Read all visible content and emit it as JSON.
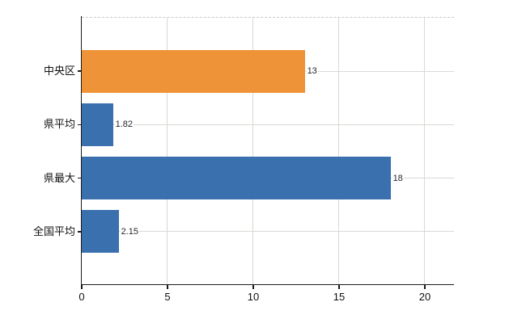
{
  "chart_data": {
    "type": "bar",
    "orientation": "horizontal",
    "title": "",
    "xlabel": "",
    "ylabel": "",
    "categories": [
      "中央区",
      "県平均",
      "県最大",
      "全国平均"
    ],
    "values": [
      13,
      1.82,
      18,
      2.15
    ],
    "value_labels": [
      "13",
      "1.82",
      "18",
      "2.15"
    ],
    "bar_colors": [
      "#ef9338",
      "#3b70af",
      "#3b70af",
      "#3b70af"
    ],
    "xlim": [
      0,
      21.7
    ],
    "xticks": [
      0,
      5,
      10,
      15,
      20
    ],
    "xtick_labels": [
      "0",
      "5",
      "10",
      "15",
      "20"
    ],
    "grid": "on",
    "legend": "none",
    "colors": {
      "orange_bar": "#ef9338",
      "blue_bar": "#3b70af",
      "gridline": "#d7dad3",
      "top_border_dashed": "#c9c9c9",
      "axis": "#1b1b1b",
      "value_label_text": "#26262e",
      "tick_label_text": "#111111",
      "background": "#ffffff"
    }
  }
}
